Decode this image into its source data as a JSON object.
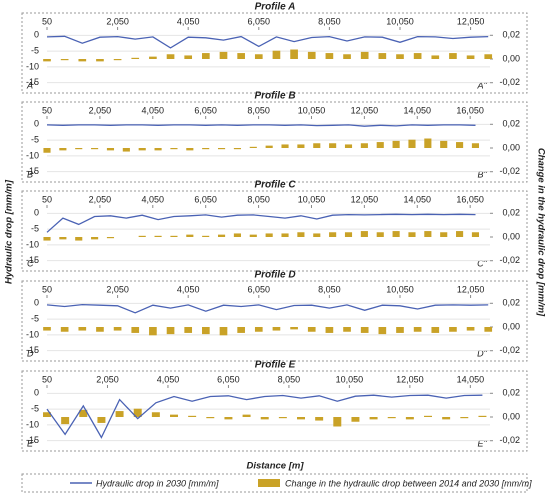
{
  "chart_data": [
    {
      "type": "combo",
      "title": "Profile A",
      "start_label": "A'",
      "end_label": "A''",
      "grid": true,
      "x": [
        50,
        550,
        1050,
        1550,
        2050,
        2550,
        3050,
        3550,
        4050,
        4550,
        5050,
        5550,
        6050,
        6550,
        7050,
        7550,
        8050,
        8550,
        9050,
        9550,
        10050,
        10550,
        11050,
        11550,
        12050,
        12550
      ],
      "xlim": [
        50,
        12600
      ],
      "xticks": [
        50,
        {
          "value": 2050,
          "label": "2,050"
        },
        {
          "value": 4050,
          "label": "4,050"
        },
        {
          "value": 6050,
          "label": "6,050"
        },
        {
          "value": 8050,
          "label": "8,050"
        },
        {
          "value": 10050,
          "label": "10,050"
        },
        {
          "value": 12050,
          "label": "12,050"
        }
      ],
      "ylim": [
        -17,
        2
      ],
      "yticks": [
        0,
        -5,
        -10,
        -15
      ],
      "y2lim": [
        -0.0253,
        0.0253
      ],
      "y2ticks": [
        {
          "value": 0.02,
          "label": "0,02"
        },
        {
          "value": 0,
          "label": "0,00"
        },
        {
          "value": -0.02,
          "label": "-0,02"
        }
      ],
      "series": [
        {
          "name": "Hydraulic drop in 2030 [mm/m]",
          "type": "line",
          "color": "#4a62b4",
          "values": [
            -0.5,
            -0.3,
            -2.5,
            -0.6,
            -0.4,
            -1.2,
            -0.5,
            -4.0,
            -0.6,
            -0.8,
            -1.5,
            -0.4,
            -3.5,
            -0.5,
            -2.0,
            -0.7,
            -0.4,
            -1.8,
            -0.5,
            -0.6,
            -2.2,
            -0.4,
            -0.5,
            -1.0,
            -0.6,
            -0.4
          ]
        },
        {
          "name": "Change in the hydraulic drop between 2014 and 2030 [mm/m]",
          "type": "bar",
          "axis": "y2",
          "color": "#c9a227",
          "values": [
            -0.002,
            -0.001,
            -0.002,
            -0.002,
            -0.001,
            0.001,
            0.002,
            0.004,
            0.003,
            0.005,
            0.006,
            0.005,
            0.004,
            0.007,
            0.008,
            0.006,
            0.005,
            0.004,
            0.006,
            0.005,
            0.004,
            0.005,
            0.003,
            0.005,
            0.003,
            0.004
          ]
        }
      ]
    },
    {
      "type": "combo",
      "title": "Profile B",
      "start_label": "B'",
      "end_label": "B''",
      "grid": true,
      "x": [
        50,
        650,
        1250,
        1850,
        2450,
        3050,
        3650,
        4250,
        4850,
        5450,
        6050,
        6650,
        7250,
        7850,
        8450,
        9050,
        9650,
        10250,
        10850,
        11450,
        12050,
        12650,
        13250,
        13850,
        14450,
        15050,
        15650,
        16250
      ],
      "xlim": [
        50,
        16800
      ],
      "xticks": [
        50,
        {
          "value": 2050,
          "label": "2,050"
        },
        {
          "value": 4050,
          "label": "4,050"
        },
        {
          "value": 6050,
          "label": "6,050"
        },
        {
          "value": 8050,
          "label": "8,050"
        },
        {
          "value": 10050,
          "label": "10,050"
        },
        {
          "value": 12050,
          "label": "12,050"
        },
        {
          "value": 14050,
          "label": "14,050"
        },
        {
          "value": 16050,
          "label": "16,050"
        }
      ],
      "ylim": [
        -17,
        2
      ],
      "yticks": [
        0,
        -5,
        -10,
        -15
      ],
      "y2lim": [
        -0.0253,
        0.0253
      ],
      "y2ticks": [
        {
          "value": 0.02,
          "label": "0,02"
        },
        {
          "value": 0,
          "label": "0,00"
        },
        {
          "value": -0.02,
          "label": "-0,02"
        }
      ],
      "series": [
        {
          "name": "Hydraulic drop in 2030 [mm/m]",
          "type": "line",
          "color": "#4a62b4",
          "values": [
            -0.2,
            -0.3,
            -0.2,
            -0.2,
            -0.3,
            -0.2,
            -0.2,
            -0.3,
            -0.2,
            -0.2,
            -0.3,
            -0.2,
            -0.3,
            -0.2,
            -0.2,
            -0.3,
            -0.2,
            -0.4,
            -0.3,
            -0.2,
            -0.6,
            -0.3,
            -0.5,
            -0.2,
            -0.3,
            -0.2,
            -0.2,
            -0.3
          ]
        },
        {
          "name": "Change in the hydraulic drop between 2014 and 2030 [mm/m]",
          "type": "bar",
          "axis": "y2",
          "color": "#c9a227",
          "values": [
            -0.004,
            -0.002,
            -0.001,
            -0.001,
            -0.002,
            -0.003,
            -0.002,
            -0.002,
            -0.001,
            -0.002,
            -0.001,
            -0.001,
            -0.001,
            0.001,
            0.002,
            0.003,
            0.003,
            0.004,
            0.004,
            0.003,
            0.004,
            0.005,
            0.006,
            0.007,
            0.008,
            0.006,
            0.005,
            0.004
          ]
        }
      ]
    },
    {
      "type": "combo",
      "title": "Profile C",
      "start_label": "C'",
      "end_label": "C''",
      "grid": true,
      "x": [
        50,
        650,
        1250,
        1850,
        2450,
        3050,
        3650,
        4250,
        4850,
        5450,
        6050,
        6650,
        7250,
        7850,
        8450,
        9050,
        9650,
        10250,
        10850,
        11450,
        12050,
        12650,
        13250,
        13850,
        14450,
        15050,
        15650,
        16250
      ],
      "xlim": [
        50,
        16800
      ],
      "xticks": [
        50,
        {
          "value": 2050,
          "label": "2,050"
        },
        {
          "value": 4050,
          "label": "4,050"
        },
        {
          "value": 6050,
          "label": "6,050"
        },
        {
          "value": 8050,
          "label": "8,050"
        },
        {
          "value": 10050,
          "label": "10,050"
        },
        {
          "value": 12050,
          "label": "12,050"
        },
        {
          "value": 14050,
          "label": "14,050"
        },
        {
          "value": 16050,
          "label": "16,050"
        }
      ],
      "ylim": [
        -17,
        2
      ],
      "yticks": [
        0,
        -5,
        -10,
        -15
      ],
      "y2lim": [
        -0.0253,
        0.0253
      ],
      "y2ticks": [
        {
          "value": 0.02,
          "label": "0,02"
        },
        {
          "value": 0,
          "label": "0,00"
        },
        {
          "value": -0.02,
          "label": "-0,02"
        }
      ],
      "series": [
        {
          "name": "Hydraulic drop in 2030 [mm/m]",
          "type": "line",
          "color": "#4a62b4",
          "values": [
            -6.0,
            -1.5,
            -3.5,
            -1.0,
            -0.8,
            -1.5,
            -0.6,
            -2.0,
            -1.0,
            -0.8,
            -0.5,
            -1.2,
            -0.6,
            -0.5,
            -1.0,
            -1.5,
            -0.8,
            -1.8,
            -0.6,
            -0.4,
            -0.5,
            -0.4,
            -0.3,
            -0.4,
            -0.3,
            -0.4,
            -0.3,
            -0.4
          ]
        },
        {
          "name": "Change in the hydraulic drop between 2014 and 2030 [mm/m]",
          "type": "bar",
          "axis": "y2",
          "color": "#c9a227",
          "values": [
            -0.003,
            -0.002,
            -0.003,
            -0.002,
            -0.001,
            0.0,
            0.001,
            0.001,
            0.001,
            0.002,
            0.001,
            0.002,
            0.003,
            0.002,
            0.003,
            0.003,
            0.004,
            0.003,
            0.004,
            0.004,
            0.005,
            0.004,
            0.005,
            0.004,
            0.005,
            0.004,
            0.005,
            0.004
          ]
        }
      ]
    },
    {
      "type": "combo",
      "title": "Profile D",
      "start_label": "D'",
      "end_label": "D''",
      "grid": true,
      "x": [
        50,
        550,
        1050,
        1550,
        2050,
        2550,
        3050,
        3550,
        4050,
        4550,
        5050,
        5550,
        6050,
        6550,
        7050,
        7550,
        8050,
        8550,
        9050,
        9550,
        10050,
        10550,
        11050,
        11550,
        12050,
        12550
      ],
      "xlim": [
        50,
        12600
      ],
      "xticks": [
        50,
        {
          "value": 2050,
          "label": "2,050"
        },
        {
          "value": 4050,
          "label": "4,050"
        },
        {
          "value": 6050,
          "label": "6,050"
        },
        {
          "value": 8050,
          "label": "8,050"
        },
        {
          "value": 10050,
          "label": "10,050"
        },
        {
          "value": 12050,
          "label": "12,050"
        }
      ],
      "ylim": [
        -17,
        2
      ],
      "yticks": [
        0,
        -5,
        -10,
        -15
      ],
      "y2lim": [
        -0.0253,
        0.0253
      ],
      "y2ticks": [
        {
          "value": 0.02,
          "label": "0,02"
        },
        {
          "value": 0,
          "label": "0,00"
        },
        {
          "value": -0.02,
          "label": "-0,02"
        }
      ],
      "series": [
        {
          "name": "Hydraulic drop in 2030 [mm/m]",
          "type": "line",
          "color": "#4a62b4",
          "values": [
            -0.5,
            -1.0,
            -0.4,
            -0.6,
            -0.8,
            -3.0,
            -0.6,
            -1.5,
            -0.5,
            -2.5,
            -0.6,
            -1.0,
            -0.5,
            -2.0,
            -0.7,
            -0.6,
            -1.5,
            -0.5,
            -2.2,
            -0.6,
            -0.8,
            -1.8,
            -0.6,
            -0.5,
            -0.6,
            -0.5
          ]
        },
        {
          "name": "Change in the hydraulic drop between 2014 and 2030 [mm/m]",
          "type": "bar",
          "axis": "y2",
          "color": "#c9a227",
          "values": [
            -0.003,
            -0.004,
            -0.003,
            -0.004,
            -0.003,
            -0.005,
            -0.007,
            -0.006,
            -0.005,
            -0.006,
            -0.007,
            -0.005,
            -0.004,
            -0.003,
            -0.002,
            -0.004,
            -0.005,
            -0.004,
            -0.005,
            -0.006,
            -0.005,
            -0.004,
            -0.005,
            -0.004,
            -0.003,
            -0.004
          ]
        }
      ]
    },
    {
      "type": "combo",
      "title": "Profile E",
      "start_label": "E'",
      "end_label": "E''",
      "grid": true,
      "x": [
        50,
        650,
        1250,
        1850,
        2450,
        3050,
        3650,
        4250,
        4850,
        5450,
        6050,
        6650,
        7250,
        7850,
        8450,
        9050,
        9650,
        10250,
        10850,
        11450,
        12050,
        12650,
        13250,
        13850,
        14450
      ],
      "xlim": [
        50,
        14700
      ],
      "xticks": [
        50,
        {
          "value": 2050,
          "label": "2,050"
        },
        {
          "value": 4050,
          "label": "4,050"
        },
        {
          "value": 6050,
          "label": "6,050"
        },
        {
          "value": 8050,
          "label": "8,050"
        },
        {
          "value": 10050,
          "label": "10,050"
        },
        {
          "value": 12050,
          "label": "12,050"
        },
        {
          "value": 14050,
          "label": "14,050"
        }
      ],
      "ylim": [
        -17,
        2
      ],
      "yticks": [
        0,
        -5,
        -10,
        -15
      ],
      "y2lim": [
        -0.0253,
        0.0253
      ],
      "y2ticks": [
        {
          "value": 0.02,
          "label": "0,02"
        },
        {
          "value": 0,
          "label": "0,00"
        },
        {
          "value": -0.02,
          "label": "-0,02"
        }
      ],
      "series": [
        {
          "name": "Hydraulic drop in 2030 [mm/m]",
          "type": "line",
          "color": "#4a62b4",
          "values": [
            -5.0,
            -13.0,
            -4.0,
            -14.0,
            -2.0,
            -8.0,
            -3.0,
            -1.0,
            -2.5,
            -1.0,
            -0.8,
            -2.0,
            -1.0,
            -0.7,
            -1.5,
            -0.8,
            -2.5,
            -0.9,
            -0.6,
            -1.2,
            -0.7,
            -0.6,
            -1.5,
            -0.7,
            -0.6
          ]
        },
        {
          "name": "Change in the hydraulic drop between 2014 and 2030 [mm/m]",
          "type": "bar",
          "axis": "y2",
          "color": "#c9a227",
          "values": [
            0.004,
            -0.006,
            0.006,
            -0.005,
            0.005,
            0.007,
            0.004,
            0.002,
            0.001,
            -0.001,
            -0.002,
            0.002,
            -0.002,
            -0.001,
            -0.002,
            -0.003,
            -0.008,
            -0.004,
            -0.002,
            -0.001,
            -0.002,
            0.001,
            -0.002,
            -0.001,
            0.001
          ]
        }
      ]
    }
  ],
  "ylabel": "Hydraulic drop [mm/m]",
  "y2label": "Change in the hydraulic drop [mm/m]",
  "xlabel": "Distance [m]"
}
